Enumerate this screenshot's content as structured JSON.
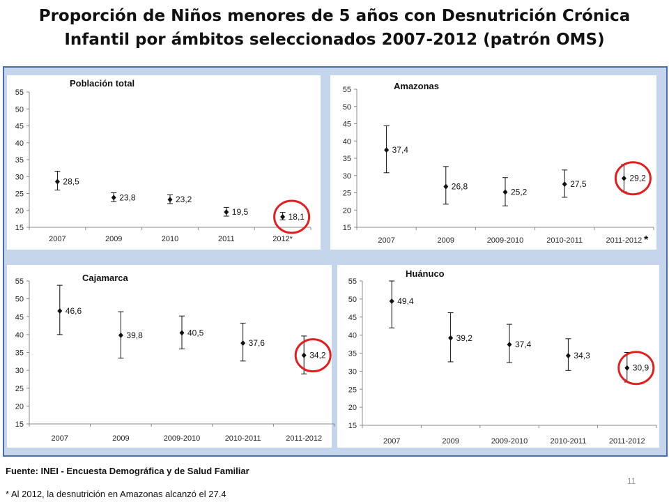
{
  "slide": {
    "title_line1": "Proporción de Niños menores de 5 años con Desnutrición Crónica",
    "title_line2": "Infantil por ámbitos seleccionados 2007-2012 (patrón OMS)",
    "source": "Fuente: INEI - Encuesta Demográfica y de Salud Familiar",
    "note": "* Al 2012, la desnutrición en Amazonas alcanzó el 27.4",
    "page_number": "11",
    "highlight_color": "#e02020",
    "panel_color": "#c5d6ec"
  },
  "chart_data": [
    {
      "type": "scatter",
      "title": "Población total",
      "categories": [
        "2007",
        "2009",
        "2010",
        "2011",
        "2012*"
      ],
      "values": [
        28.5,
        23.8,
        23.2,
        19.5,
        18.1
      ],
      "labels": [
        "28,5",
        "23,8",
        "23,2",
        "19,5",
        "18,1"
      ],
      "error_low": [
        26.0,
        22.6,
        22.0,
        18.3,
        17.2
      ],
      "error_high": [
        31.6,
        25.2,
        24.6,
        20.9,
        19.4
      ],
      "ylim": [
        15,
        55
      ],
      "yticks": [
        15,
        20,
        25,
        30,
        35,
        40,
        45,
        50,
        55
      ],
      "highlight_index": 4,
      "extra_mark": ""
    },
    {
      "type": "scatter",
      "title": "Amazonas",
      "categories": [
        "2007",
        "2009",
        "2009-2010",
        "2010-2011",
        "2011-2012"
      ],
      "values": [
        37.4,
        26.8,
        25.2,
        27.5,
        29.2
      ],
      "labels": [
        "37,4",
        "26,8",
        "25,2",
        "27,5",
        "29,2"
      ],
      "error_low": [
        30.8,
        21.7,
        21.2,
        23.7,
        25.3
      ],
      "error_high": [
        44.4,
        32.6,
        29.4,
        31.6,
        33.2
      ],
      "ylim": [
        15,
        55
      ],
      "yticks": [
        15,
        20,
        25,
        30,
        35,
        40,
        45,
        50,
        55
      ],
      "highlight_index": 4,
      "extra_mark": "*"
    },
    {
      "type": "scatter",
      "title": "Cajamarca",
      "categories": [
        "2007",
        "2009",
        "2009-2010",
        "2010-2011",
        "2011-2012"
      ],
      "values": [
        46.6,
        39.8,
        40.5,
        37.6,
        34.2
      ],
      "labels": [
        "46,6",
        "39,8",
        "40,5",
        "37,6",
        "34,2"
      ],
      "error_low": [
        40.0,
        33.4,
        36.0,
        32.6,
        29.0
      ],
      "error_high": [
        53.8,
        46.4,
        45.2,
        43.2,
        39.6
      ],
      "ylim": [
        15,
        55
      ],
      "yticks": [
        15,
        20,
        25,
        30,
        35,
        40,
        45,
        50,
        55
      ],
      "highlight_index": 4,
      "extra_mark": ""
    },
    {
      "type": "scatter",
      "title": "Huánuco",
      "categories": [
        "2007",
        "2009",
        "2009-2010",
        "2010-2011",
        "2011-2012"
      ],
      "values": [
        49.4,
        39.2,
        37.4,
        34.3,
        30.9
      ],
      "labels": [
        "49,4",
        "39,2",
        "37,4",
        "34,3",
        "30,9"
      ],
      "error_low": [
        42.0,
        32.6,
        32.4,
        30.2,
        27.0
      ],
      "error_high": [
        55.0,
        46.2,
        43.0,
        39.0,
        35.2
      ],
      "ylim": [
        15,
        55
      ],
      "yticks": [
        15,
        20,
        25,
        30,
        35,
        40,
        45,
        50,
        55
      ],
      "highlight_index": 4,
      "extra_mark": ""
    }
  ]
}
